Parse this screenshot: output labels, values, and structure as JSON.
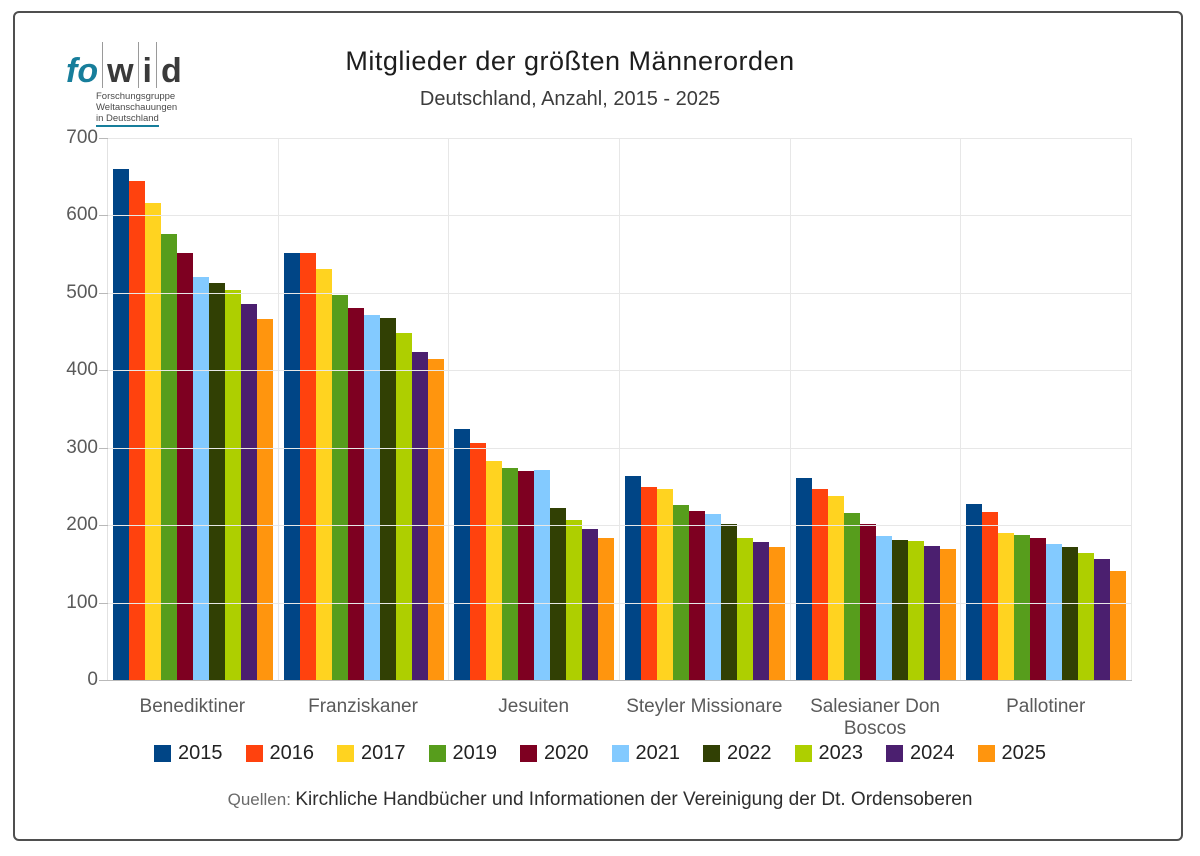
{
  "header": {
    "logo": {
      "part1": "fo",
      "part2": "w",
      "part3": "i",
      "part4": "d",
      "subline1": "Forschungsgruppe",
      "subline2": "Weltanschauungen",
      "subline3": "in Deutschland",
      "accent_color": "#177e9b"
    },
    "title": "Mitglieder der größten Männerorden",
    "subtitle": "Deutschland, Anzahl, 2015 - 2025"
  },
  "chart_data": {
    "type": "bar",
    "title": "Mitglieder der größten Männerorden",
    "subtitle": "Deutschland, Anzahl, 2015 - 2025",
    "categories": [
      "Benediktiner",
      "Franziskaner",
      "Jesuiten",
      "Steyler Missionare",
      "Salesianer Don Boscos",
      "Pallotiner"
    ],
    "series": [
      {
        "name": "2015",
        "color": "#004586",
        "values": [
          660,
          552,
          324,
          263,
          261,
          227
        ]
      },
      {
        "name": "2016",
        "color": "#ff420e",
        "values": [
          644,
          552,
          306,
          249,
          247,
          217
        ]
      },
      {
        "name": "2017",
        "color": "#ffd320",
        "values": [
          616,
          531,
          283,
          247,
          238,
          190
        ]
      },
      {
        "name": "2019",
        "color": "#579d1c",
        "values": [
          576,
          497,
          274,
          226,
          216,
          187
        ]
      },
      {
        "name": "2020",
        "color": "#7e0021",
        "values": [
          551,
          481,
          270,
          218,
          202,
          184
        ]
      },
      {
        "name": "2021",
        "color": "#83caff",
        "values": [
          520,
          471,
          271,
          214,
          186,
          176
        ]
      },
      {
        "name": "2022",
        "color": "#314004",
        "values": [
          513,
          467,
          222,
          202,
          181,
          172
        ]
      },
      {
        "name": "2023",
        "color": "#aecf00",
        "values": [
          504,
          448,
          207,
          184,
          179,
          164
        ]
      },
      {
        "name": "2024",
        "color": "#4b1f6f",
        "values": [
          486,
          423,
          195,
          178,
          173,
          156
        ]
      },
      {
        "name": "2025",
        "color": "#ff950e",
        "values": [
          466,
          415,
          183,
          172,
          169,
          141
        ]
      }
    ],
    "ylim": [
      0,
      700
    ],
    "ytick_step": 100,
    "ytick_labels": [
      "0",
      "100",
      "200",
      "300",
      "400",
      "500",
      "600",
      "700"
    ],
    "grid": true,
    "legend_position": "bottom"
  },
  "source": {
    "label": "Quellen:",
    "text": "Kirchliche Handbücher und Informationen der Vereinigung der Dt. Ordensoberen"
  }
}
